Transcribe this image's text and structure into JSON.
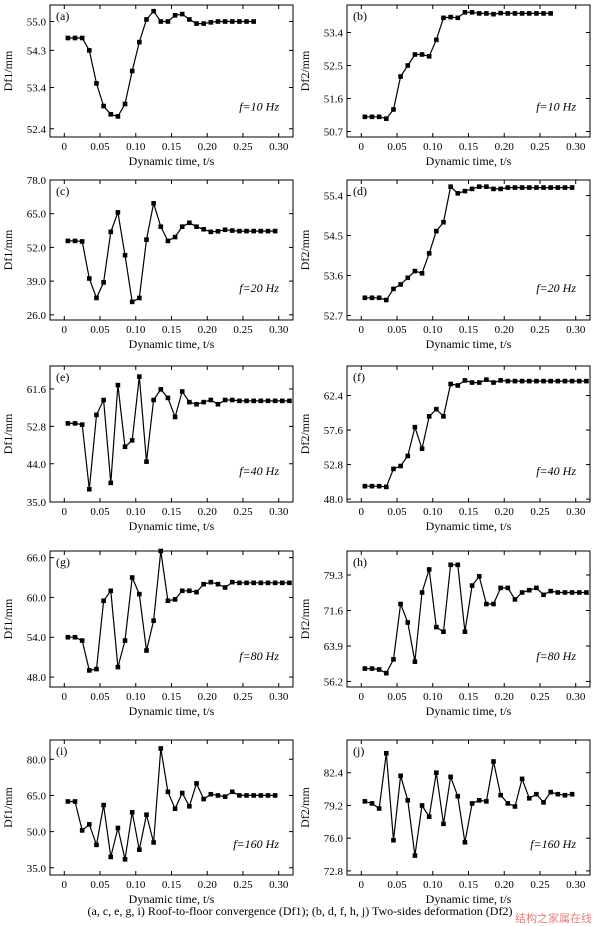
{
  "caption": "(a, c, e, g, i) Roof-to-floor convergence (Df1); (b, d, f, h, j) Two-sides deformation (Df2)",
  "watermark": "结构之家属在线",
  "chart_data": [
    {
      "panel": "(a)",
      "type": "line",
      "annotation": "f=10 Hz",
      "xlabel": "Dynamic time, t/s",
      "ylabel": "Df1/mm",
      "xlim": [
        -0.02,
        0.32
      ],
      "ylim": [
        52.2,
        55.4
      ],
      "xticks": [
        "0",
        "0.05",
        "0.10",
        "0.15",
        "0.20",
        "0.25",
        "0.30"
      ],
      "yticks": [
        "52.4",
        "53.4",
        "54.3",
        "55.0"
      ],
      "x": [
        0.005,
        0.015,
        0.025,
        0.035,
        0.045,
        0.055,
        0.065,
        0.075,
        0.085,
        0.095,
        0.105,
        0.115,
        0.125,
        0.135,
        0.145,
        0.155,
        0.165,
        0.175,
        0.185,
        0.195,
        0.205,
        0.215,
        0.225,
        0.235,
        0.245,
        0.255,
        0.265
      ],
      "y": [
        54.6,
        54.6,
        54.6,
        54.3,
        53.5,
        52.95,
        52.75,
        52.7,
        53.0,
        53.8,
        54.5,
        55.05,
        55.25,
        55.0,
        55.0,
        55.15,
        55.18,
        55.05,
        54.95,
        54.95,
        54.98,
        55.0,
        55.0,
        55.0,
        55.0,
        55.0,
        55.0
      ]
    },
    {
      "panel": "(b)",
      "type": "line",
      "annotation": "f=10 Hz",
      "xlabel": "Dynamic time, t/s",
      "ylabel": "Df2/mm",
      "xlim": [
        -0.02,
        0.32
      ],
      "ylim": [
        50.55,
        54.15
      ],
      "xticks": [
        "0",
        "0.05",
        "0.10",
        "0.15",
        "0.20",
        "0.25",
        "0.30"
      ],
      "yticks": [
        "50.7",
        "51.6",
        "52.5",
        "53.4"
      ],
      "x": [
        0.005,
        0.015,
        0.025,
        0.035,
        0.045,
        0.055,
        0.065,
        0.075,
        0.085,
        0.095,
        0.105,
        0.115,
        0.125,
        0.135,
        0.145,
        0.155,
        0.165,
        0.175,
        0.185,
        0.195,
        0.205,
        0.215,
        0.225,
        0.235,
        0.245,
        0.255,
        0.265
      ],
      "y": [
        51.1,
        51.1,
        51.1,
        51.05,
        51.3,
        52.2,
        52.5,
        52.8,
        52.8,
        52.75,
        53.2,
        53.8,
        53.82,
        53.8,
        53.95,
        53.95,
        53.92,
        53.92,
        53.9,
        53.93,
        53.92,
        53.92,
        53.92,
        53.92,
        53.92,
        53.92,
        53.92
      ]
    },
    {
      "panel": "(c)",
      "type": "line",
      "annotation": "f=20 Hz",
      "xlabel": "Dynamic time, t/s",
      "ylabel": "Df1/mm",
      "xlim": [
        -0.02,
        0.32
      ],
      "ylim": [
        24.0,
        78.0
      ],
      "xticks": [
        "0",
        "0.05",
        "0.10",
        "0.15",
        "0.20",
        "0.25",
        "0.30"
      ],
      "yticks": [
        "26.0",
        "39.0",
        "52.0",
        "65.0",
        "78.0"
      ],
      "x": [
        0.005,
        0.015,
        0.025,
        0.035,
        0.045,
        0.055,
        0.065,
        0.075,
        0.085,
        0.095,
        0.105,
        0.115,
        0.125,
        0.135,
        0.145,
        0.155,
        0.165,
        0.175,
        0.185,
        0.195,
        0.205,
        0.215,
        0.225,
        0.235,
        0.245,
        0.255,
        0.265,
        0.275,
        0.285,
        0.295
      ],
      "y": [
        54.5,
        54.5,
        54.3,
        40.0,
        32.5,
        38.5,
        58.0,
        65.5,
        49.0,
        31.0,
        32.5,
        55.0,
        69.0,
        60.0,
        54.5,
        56.0,
        60.0,
        61.5,
        60.0,
        59.0,
        58.0,
        58.2,
        58.8,
        58.5,
        58.3,
        58.3,
        58.3,
        58.3,
        58.3,
        58.3
      ]
    },
    {
      "panel": "(d)",
      "type": "line",
      "annotation": "f=20 Hz",
      "xlabel": "Dynamic time, t/s",
      "ylabel": "Df2/mm",
      "xlim": [
        -0.02,
        0.32
      ],
      "ylim": [
        52.6,
        55.75
      ],
      "xticks": [
        "0",
        "0.05",
        "0.10",
        "0.15",
        "0.20",
        "0.25",
        "0.30"
      ],
      "yticks": [
        "52.7",
        "53.6",
        "54.5",
        "55.4"
      ],
      "x": [
        0.005,
        0.015,
        0.025,
        0.035,
        0.045,
        0.055,
        0.065,
        0.075,
        0.085,
        0.095,
        0.105,
        0.115,
        0.125,
        0.135,
        0.145,
        0.155,
        0.165,
        0.175,
        0.185,
        0.195,
        0.205,
        0.215,
        0.225,
        0.235,
        0.245,
        0.255,
        0.265,
        0.275,
        0.285,
        0.295
      ],
      "y": [
        53.1,
        53.1,
        53.1,
        53.05,
        53.3,
        53.4,
        53.55,
        53.7,
        53.65,
        54.1,
        54.6,
        54.8,
        55.6,
        55.45,
        55.5,
        55.55,
        55.6,
        55.6,
        55.55,
        55.55,
        55.58,
        55.58,
        55.58,
        55.58,
        55.58,
        55.58,
        55.58,
        55.58,
        55.58,
        55.58
      ]
    },
    {
      "panel": "(e)",
      "type": "line",
      "annotation": "f=40 Hz",
      "xlabel": "Dynamic time, t/s",
      "ylabel": "Df1/mm",
      "xlim": [
        -0.02,
        0.32
      ],
      "ylim": [
        35.0,
        67.0
      ],
      "xticks": [
        "0",
        "0.05",
        "0.10",
        "0.15",
        "0.20",
        "0.25",
        "0.30"
      ],
      "yticks": [
        "35.0",
        "44.0",
        "52.8",
        "61.6"
      ],
      "x": [
        0.005,
        0.015,
        0.025,
        0.035,
        0.045,
        0.055,
        0.065,
        0.075,
        0.085,
        0.095,
        0.105,
        0.115,
        0.125,
        0.135,
        0.145,
        0.155,
        0.165,
        0.175,
        0.185,
        0.195,
        0.205,
        0.215,
        0.225,
        0.235,
        0.245,
        0.255,
        0.265,
        0.275,
        0.285,
        0.295,
        0.305,
        0.315
      ],
      "y": [
        53.5,
        53.5,
        53.2,
        38.0,
        55.5,
        59.0,
        39.5,
        62.5,
        48.0,
        49.5,
        64.5,
        44.5,
        59.0,
        61.5,
        59.5,
        55.0,
        61.0,
        58.5,
        58.0,
        58.5,
        59.0,
        58.0,
        59.0,
        59.0,
        58.8,
        58.8,
        58.8,
        58.8,
        58.8,
        58.8,
        58.8,
        58.8
      ]
    },
    {
      "panel": "(f)",
      "type": "line",
      "annotation": "f=40 Hz",
      "xlabel": "Dynamic time, t/s",
      "ylabel": "Df2/mm",
      "xlim": [
        -0.02,
        0.32
      ],
      "ylim": [
        47.6,
        66.5
      ],
      "xticks": [
        "0",
        "0.05",
        "0.10",
        "0.15",
        "0.20",
        "0.25",
        "0.30"
      ],
      "yticks": [
        "48.0",
        "52.8",
        "57.6",
        "62.4"
      ],
      "x": [
        0.005,
        0.015,
        0.025,
        0.035,
        0.045,
        0.055,
        0.065,
        0.075,
        0.085,
        0.095,
        0.105,
        0.115,
        0.125,
        0.135,
        0.145,
        0.155,
        0.165,
        0.175,
        0.185,
        0.195,
        0.205,
        0.215,
        0.225,
        0.235,
        0.245,
        0.255,
        0.265,
        0.275,
        0.285,
        0.295,
        0.305,
        0.315
      ],
      "y": [
        49.8,
        49.8,
        49.8,
        49.7,
        52.2,
        52.6,
        54.0,
        58.0,
        55.0,
        59.5,
        60.5,
        59.5,
        64.0,
        63.8,
        64.5,
        64.2,
        64.2,
        64.6,
        64.2,
        64.5,
        64.4,
        64.4,
        64.4,
        64.4,
        64.4,
        64.4,
        64.4,
        64.4,
        64.4,
        64.4,
        64.4,
        64.4
      ]
    },
    {
      "panel": "(g)",
      "type": "line",
      "annotation": "f=80 Hz",
      "xlabel": "Dynamic time, t/s",
      "ylabel": "Df1/mm",
      "xlim": [
        -0.02,
        0.32
      ],
      "ylim": [
        46.5,
        67.0
      ],
      "xticks": [
        "0",
        "0.05",
        "0.10",
        "0.15",
        "0.20",
        "0.25",
        "0.30"
      ],
      "yticks": [
        "48.0",
        "54.0",
        "60.0",
        "66.0"
      ],
      "x": [
        0.005,
        0.015,
        0.025,
        0.035,
        0.045,
        0.055,
        0.065,
        0.075,
        0.085,
        0.095,
        0.105,
        0.115,
        0.125,
        0.135,
        0.145,
        0.155,
        0.165,
        0.175,
        0.185,
        0.195,
        0.205,
        0.215,
        0.225,
        0.235,
        0.245,
        0.255,
        0.265,
        0.275,
        0.285,
        0.295,
        0.305,
        0.315
      ],
      "y": [
        54.0,
        54.0,
        53.5,
        49.0,
        49.2,
        59.5,
        61.0,
        49.5,
        53.5,
        63.0,
        60.5,
        52.0,
        56.5,
        67.0,
        59.5,
        59.7,
        61.0,
        61.0,
        60.8,
        62.0,
        62.3,
        62.0,
        61.5,
        62.3,
        62.2,
        62.2,
        62.2,
        62.2,
        62.2,
        62.2,
        62.2,
        62.2
      ]
    },
    {
      "panel": "(h)",
      "type": "line",
      "annotation": "f=80 Hz",
      "xlabel": "Dynamic time, t/s",
      "ylabel": "Df2/mm",
      "xlim": [
        -0.02,
        0.32
      ],
      "ylim": [
        55.0,
        84.5
      ],
      "xticks": [
        "0",
        "0.05",
        "0.10",
        "0.15",
        "0.20",
        "0.25",
        "0.30"
      ],
      "yticks": [
        "56.2",
        "63.9",
        "71.6",
        "79.3"
      ],
      "x": [
        0.005,
        0.015,
        0.025,
        0.035,
        0.045,
        0.055,
        0.065,
        0.075,
        0.085,
        0.095,
        0.105,
        0.115,
        0.125,
        0.135,
        0.145,
        0.155,
        0.165,
        0.175,
        0.185,
        0.195,
        0.205,
        0.215,
        0.225,
        0.235,
        0.245,
        0.255,
        0.265,
        0.275,
        0.285,
        0.295,
        0.305,
        0.315
      ],
      "y": [
        59.0,
        59.0,
        58.8,
        58.0,
        61.0,
        73.0,
        69.0,
        60.5,
        75.5,
        80.5,
        68.0,
        67.0,
        81.5,
        81.5,
        67.0,
        77.0,
        79.0,
        73.0,
        73.0,
        76.5,
        76.5,
        74.0,
        75.5,
        76.0,
        76.5,
        75.0,
        75.8,
        75.5,
        75.5,
        75.5,
        75.5,
        75.5
      ]
    },
    {
      "panel": "(i)",
      "type": "line",
      "annotation": "f=160 Hz",
      "xlabel": "Dynamic time, t/s",
      "ylabel": "Df1/mm",
      "xlim": [
        -0.02,
        0.32
      ],
      "ylim": [
        32.0,
        88.0
      ],
      "xticks": [
        "0",
        "0.05",
        "0.10",
        "0.15",
        "0.20",
        "0.25",
        "0.30"
      ],
      "yticks": [
        "35.0",
        "50.0",
        "65.0",
        "80.0"
      ],
      "x": [
        0.005,
        0.015,
        0.025,
        0.035,
        0.045,
        0.055,
        0.065,
        0.075,
        0.085,
        0.095,
        0.105,
        0.115,
        0.125,
        0.135,
        0.145,
        0.155,
        0.165,
        0.175,
        0.185,
        0.195,
        0.205,
        0.215,
        0.225,
        0.235,
        0.245,
        0.255,
        0.265,
        0.275,
        0.285,
        0.295
      ],
      "y": [
        62.5,
        62.5,
        50.5,
        53.0,
        44.5,
        61.0,
        39.5,
        51.5,
        38.5,
        58.0,
        42.5,
        57.0,
        45.5,
        84.5,
        66.5,
        59.5,
        66.0,
        60.5,
        70.0,
        63.5,
        65.5,
        65.0,
        64.5,
        66.5,
        65.0,
        65.0,
        65.0,
        65.0,
        65.0,
        65.0
      ]
    },
    {
      "panel": "(j)",
      "type": "line",
      "annotation": "f=160 Hz",
      "xlabel": "Dynamic time, t/s",
      "ylabel": "Df2/mm",
      "xlim": [
        -0.02,
        0.32
      ],
      "ylim": [
        72.4,
        85.6
      ],
      "xticks": [
        "0",
        "0.05",
        "0.10",
        "0.15",
        "0.20",
        "0.25",
        "0.30"
      ],
      "yticks": [
        "72.8",
        "76.0",
        "79.2",
        "82.4"
      ],
      "x": [
        0.005,
        0.015,
        0.025,
        0.035,
        0.045,
        0.055,
        0.065,
        0.075,
        0.085,
        0.095,
        0.105,
        0.115,
        0.125,
        0.135,
        0.145,
        0.155,
        0.165,
        0.175,
        0.185,
        0.195,
        0.205,
        0.215,
        0.225,
        0.235,
        0.245,
        0.255,
        0.265,
        0.275,
        0.285,
        0.295
      ],
      "y": [
        79.6,
        79.4,
        78.9,
        84.3,
        75.8,
        82.1,
        79.7,
        74.3,
        79.2,
        78.1,
        82.4,
        77.4,
        82.0,
        80.1,
        75.6,
        79.4,
        79.7,
        79.6,
        83.5,
        80.2,
        79.4,
        79.1,
        81.8,
        79.9,
        80.3,
        79.5,
        80.5,
        80.3,
        80.2,
        80.3
      ]
    }
  ]
}
